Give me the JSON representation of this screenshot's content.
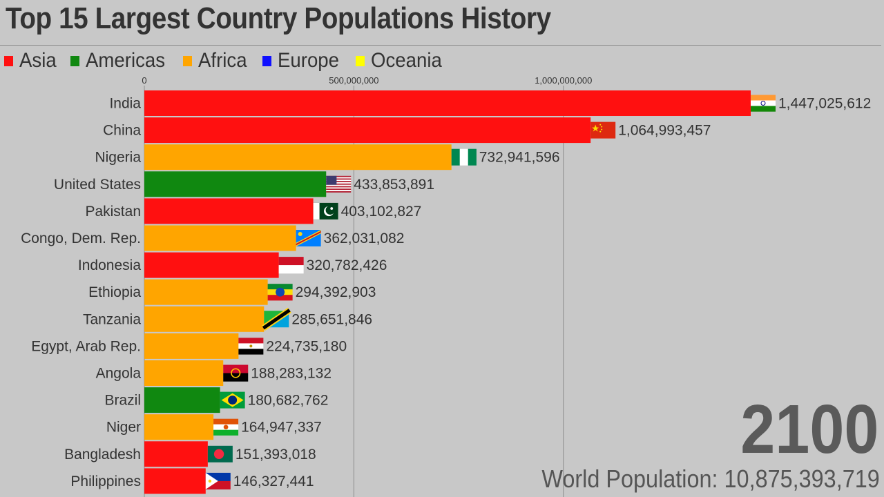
{
  "title": "Top 15 Largest Country Populations History",
  "legend": [
    {
      "label": "Asia",
      "color": "#ff1010"
    },
    {
      "label": "Americas",
      "color": "#108810"
    },
    {
      "label": "Africa",
      "color": "#ffa500"
    },
    {
      "label": "Europe",
      "color": "#1010ff"
    },
    {
      "label": "Oceania",
      "color": "#ffff00"
    }
  ],
  "year": "2100",
  "world_population": {
    "label": "World Population:",
    "value": "10,875,393,719"
  },
  "chart_data": {
    "type": "bar",
    "orientation": "horizontal",
    "title": "Top 15 Largest Country Populations History",
    "xlabel": "",
    "ylabel": "",
    "xlim": [
      0,
      1447025612
    ],
    "x_ticks": [
      {
        "value": 0,
        "label": "0"
      },
      {
        "value": 500000000,
        "label": "500,000,000"
      },
      {
        "value": 1000000000,
        "label": "1,000,000,000"
      }
    ],
    "grid": "vertical lines at ticks",
    "region_colors": {
      "Asia": "#ff1010",
      "Americas": "#108810",
      "Africa": "#ffa500",
      "Europe": "#1010ff",
      "Oceania": "#ffff00"
    },
    "categories": [
      "India",
      "China",
      "Nigeria",
      "United States",
      "Pakistan",
      "Congo, Dem. Rep.",
      "Indonesia",
      "Ethiopia",
      "Tanzania",
      "Egypt, Arab Rep.",
      "Angola",
      "Brazil",
      "Niger",
      "Bangladesh",
      "Philippines"
    ],
    "values": [
      1447025612,
      1064993457,
      732941596,
      433853891,
      403102827,
      362031082,
      320782426,
      294392903,
      285651846,
      224735180,
      188283132,
      180682762,
      164947337,
      151393018,
      146327441
    ],
    "value_labels": [
      "1,447,025,612",
      "1,064,993,457",
      "732,941,596",
      "433,853,891",
      "403,102,827",
      "362,031,082",
      "320,782,426",
      "294,392,903",
      "285,651,846",
      "224,735,180",
      "188,283,132",
      "180,682,762",
      "164,947,337",
      "151,393,018",
      "146,327,441"
    ],
    "regions": [
      "Asia",
      "Asia",
      "Africa",
      "Americas",
      "Asia",
      "Africa",
      "Asia",
      "Africa",
      "Africa",
      "Africa",
      "Africa",
      "Americas",
      "Africa",
      "Asia",
      "Asia"
    ],
    "flags": [
      "india-flag",
      "china-flag",
      "nigeria-flag",
      "usa-flag",
      "pakistan-flag",
      "drc-flag",
      "indonesia-flag",
      "ethiopia-flag",
      "tanzania-flag",
      "egypt-flag",
      "angola-flag",
      "brazil-flag",
      "niger-flag",
      "bangladesh-flag",
      "philippines-flag"
    ]
  }
}
